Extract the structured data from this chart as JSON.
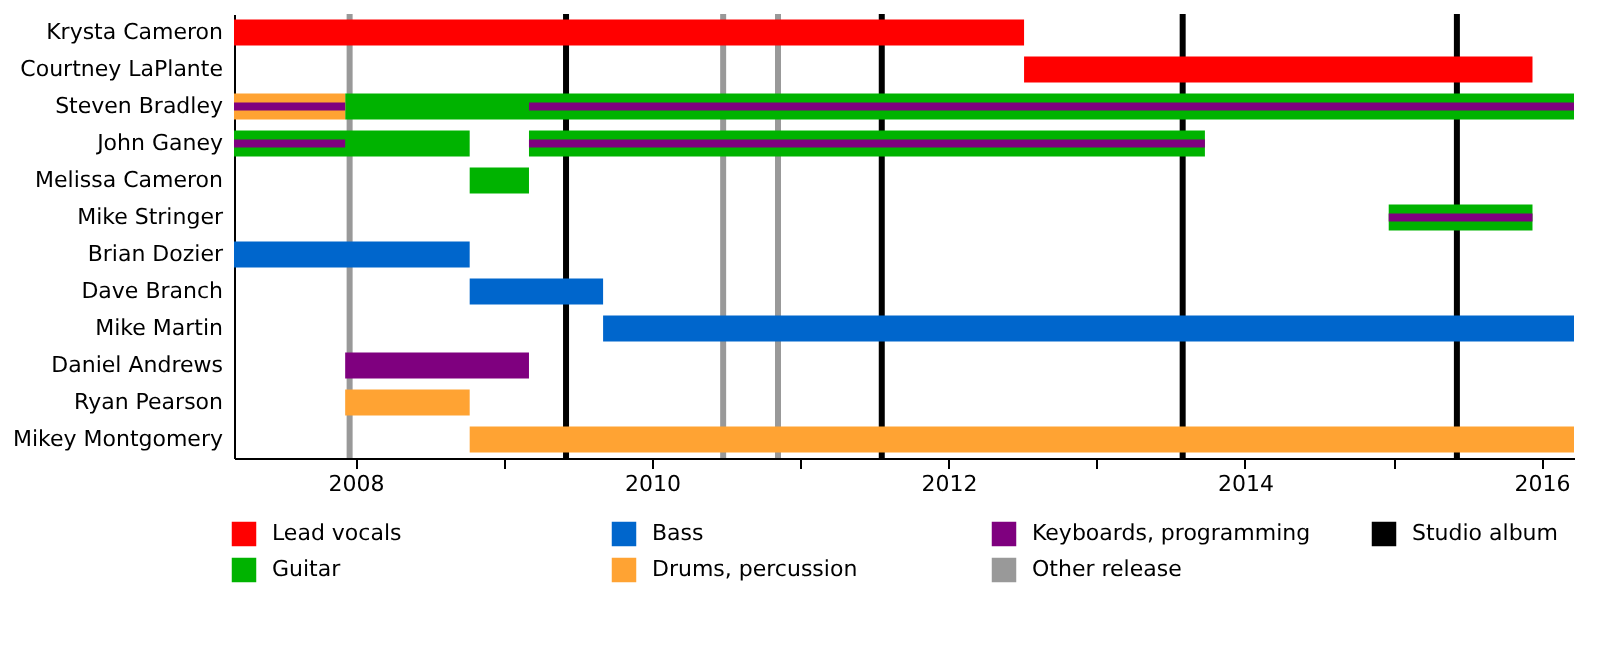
{
  "chart_data": {
    "type": "bar",
    "orientation": "horizontal",
    "categories": [
      "Krysta Cameron",
      "Courtney LaPlante",
      "Steven Bradley",
      "John Ganey",
      "Melissa Cameron",
      "Mike Stringer",
      "Brian Dozier",
      "Dave Branch",
      "Mike Martin",
      "Daniel Andrews",
      "Ryan Pearson",
      "Mikey Montgomery"
    ],
    "series": [
      {
        "name": "Lead vocals",
        "color": "#ff0000",
        "base": [
          2007.18,
          2012.51,
          null,
          null,
          null,
          null,
          null,
          null,
          null,
          null,
          null,
          null
        ],
        "values": [
          5.33,
          3.43,
          null,
          null,
          null,
          null,
          null,
          null,
          null,
          null,
          null,
          null
        ]
      },
      {
        "name": "Guitar",
        "color": "#00b300",
        "base": [
          null,
          null,
          2007.93,
          2007.18,
          2008.77,
          2014.97,
          null,
          null,
          null,
          null,
          null,
          null
        ],
        "values": [
          null,
          null,
          8.29,
          1.59,
          0.4,
          0.97,
          null,
          null,
          null,
          null,
          null,
          null
        ]
      },
      {
        "name": "Bass",
        "color": "#0066cc",
        "base": [
          null,
          null,
          null,
          null,
          null,
          null,
          2007.18,
          2008.77,
          2009.67,
          null,
          null,
          null
        ],
        "values": [
          null,
          null,
          null,
          null,
          null,
          null,
          1.59,
          0.9,
          6.55,
          null,
          null,
          null
        ]
      },
      {
        "name": "Drums, percussion",
        "color": "#ffa333",
        "base": [
          null,
          null,
          2007.18,
          null,
          null,
          null,
          null,
          null,
          null,
          null,
          2007.93,
          2008.77
        ],
        "values": [
          null,
          null,
          0.75,
          null,
          null,
          null,
          null,
          null,
          null,
          null,
          0.84,
          7.45
        ]
      },
      {
        "name": "Keyboards, programming",
        "color": "#7f007f",
        "base": [
          null,
          null,
          2007.18,
          2007.18,
          null,
          null,
          null,
          null,
          null,
          2007.93,
          null,
          null
        ],
        "values": [
          null,
          null,
          0.75,
          0.75,
          null,
          null,
          null,
          null,
          null,
          1.24,
          null,
          null
        ]
      },
      {
        "color": "#00b300",
        "base": [
          null,
          null,
          null,
          2009.17,
          null,
          null,
          null,
          null,
          null,
          null,
          null,
          null
        ],
        "values": [
          null,
          null,
          null,
          4.56,
          null,
          null,
          null,
          null,
          null,
          null,
          null,
          null
        ]
      },
      {
        "color": "#7f007f",
        "base": [
          null,
          null,
          2009.17,
          2009.17,
          null,
          2014.97,
          null,
          null,
          null,
          null,
          null,
          null
        ],
        "values": [
          null,
          null,
          7.05,
          4.56,
          null,
          0.97,
          null,
          null,
          null,
          null,
          null,
          null
        ]
      }
    ],
    "ref_lines": [
      {
        "axis": "x",
        "value": 2007.96,
        "label": "Other release",
        "color": "#999999"
      },
      {
        "axis": "x",
        "value": 2010.48,
        "color": "#999999"
      },
      {
        "axis": "x",
        "value": 2010.85,
        "color": "#999999"
      },
      {
        "axis": "x",
        "value": 2009.42,
        "label": "Studio album",
        "color": "#000000"
      },
      {
        "axis": "x",
        "value": 2011.55,
        "color": "#000000"
      },
      {
        "axis": "x",
        "value": 2013.58,
        "color": "#000000"
      },
      {
        "axis": "x",
        "value": 2015.43,
        "color": "#000000"
      }
    ],
    "xlim": [
      2007.18,
      2016.22
    ],
    "xticks": [
      2008,
      {
        "value": 2009,
        "label": null
      },
      2010,
      {
        "value": 2011,
        "label": null
      },
      2012,
      {
        "value": 2013,
        "label": null
      },
      2014,
      {
        "value": 2015,
        "label": null
      },
      2016
    ],
    "grid": false,
    "legend": "bottom"
  }
}
